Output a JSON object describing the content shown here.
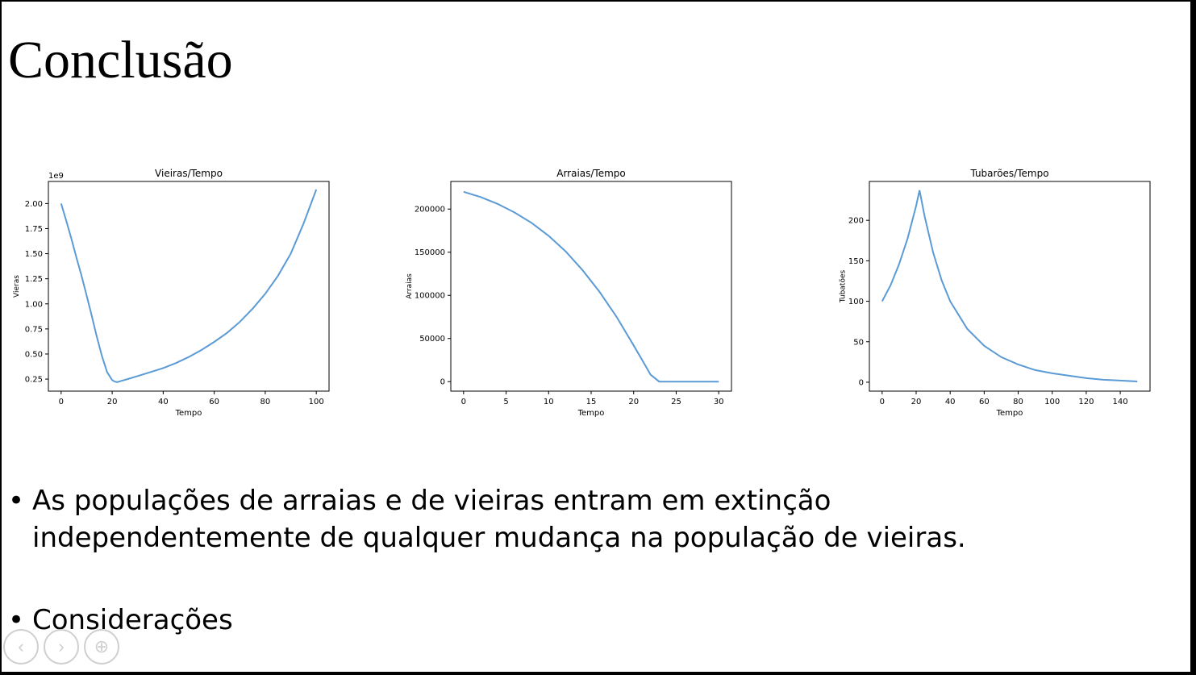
{
  "slide": {
    "title": "Conclusão",
    "bullets": [
      "As populações de arraias e de vieiras entram em extinção independentemente de qualquer mudança na população de vieiras.",
      "Considerações"
    ],
    "bullet_glyph": "•"
  },
  "nav": {
    "icons": [
      "previous-arrow-icon",
      "next-arrow-icon",
      "zoom-icon"
    ],
    "glyphs": [
      "‹",
      "›",
      "⊕"
    ]
  },
  "colors": {
    "line": "#5b9bd5",
    "axis": "#000000",
    "background": "#ffffff"
  },
  "chart_data": [
    {
      "type": "line",
      "title": "Vieiras/Tempo",
      "xlabel": "Tempo",
      "ylabel": "Vieras",
      "offset_label": "1e9",
      "xlim": [
        -5,
        105
      ],
      "ylim": [
        0.13,
        2.22
      ],
      "xticks": [
        0,
        20,
        40,
        60,
        80,
        100
      ],
      "yticks": [
        0.25,
        0.5,
        0.75,
        1.0,
        1.25,
        1.5,
        1.75,
        2.0
      ],
      "ytick_labels": [
        "0.25",
        "0.50",
        "0.75",
        "1.00",
        "1.25",
        "1.50",
        "1.75",
        "2.00"
      ],
      "series": [
        {
          "x": [
            0,
            2,
            4,
            6,
            8,
            10,
            12,
            14,
            16,
            18,
            20,
            21,
            22,
            24,
            26,
            30,
            35,
            40,
            45,
            50,
            55,
            60,
            65,
            70,
            75,
            80,
            85,
            90,
            95,
            100
          ],
          "values": [
            2.0,
            1.83,
            1.65,
            1.46,
            1.28,
            1.08,
            0.88,
            0.67,
            0.48,
            0.32,
            0.24,
            0.225,
            0.22,
            0.235,
            0.25,
            0.28,
            0.32,
            0.36,
            0.41,
            0.47,
            0.54,
            0.62,
            0.71,
            0.82,
            0.95,
            1.1,
            1.28,
            1.5,
            1.8,
            2.14
          ]
        }
      ]
    },
    {
      "type": "line",
      "title": "Arraias/Tempo",
      "xlabel": "Tempo",
      "ylabel": "Arraias",
      "xlim": [
        -1.5,
        31.5
      ],
      "ylim": [
        -11000,
        232000
      ],
      "xticks": [
        0,
        5,
        10,
        15,
        20,
        25,
        30
      ],
      "yticks": [
        0,
        50000,
        100000,
        150000,
        200000
      ],
      "ytick_labels": [
        "0",
        "50000",
        "100000",
        "150000",
        "200000"
      ],
      "series": [
        {
          "x": [
            0,
            2,
            4,
            6,
            8,
            10,
            12,
            14,
            16,
            18,
            20,
            21,
            22,
            23,
            24,
            26,
            28,
            30
          ],
          "values": [
            220000,
            214000,
            206000,
            196000,
            184000,
            169000,
            151000,
            129000,
            104000,
            75000,
            42000,
            25000,
            8000,
            0,
            0,
            0,
            0,
            0
          ]
        }
      ]
    },
    {
      "type": "line",
      "title": "Tubarões/Tempo",
      "xlabel": "Tempo",
      "ylabel": "Tubatões",
      "xlim": [
        -7.5,
        157.5
      ],
      "ylim": [
        -11,
        248
      ],
      "xticks": [
        0,
        20,
        40,
        60,
        80,
        100,
        120,
        140
      ],
      "yticks": [
        0,
        50,
        100,
        150,
        200
      ],
      "ytick_labels": [
        "0",
        "50",
        "100",
        "150",
        "200"
      ],
      "series": [
        {
          "x": [
            0,
            5,
            10,
            15,
            20,
            22,
            25,
            30,
            35,
            40,
            50,
            60,
            70,
            80,
            90,
            100,
            110,
            120,
            130,
            140,
            150
          ],
          "values": [
            100,
            120,
            146,
            178,
            218,
            237,
            205,
            160,
            126,
            100,
            66,
            45,
            31,
            22,
            15,
            11,
            8,
            5,
            3,
            2,
            1
          ]
        }
      ]
    }
  ]
}
